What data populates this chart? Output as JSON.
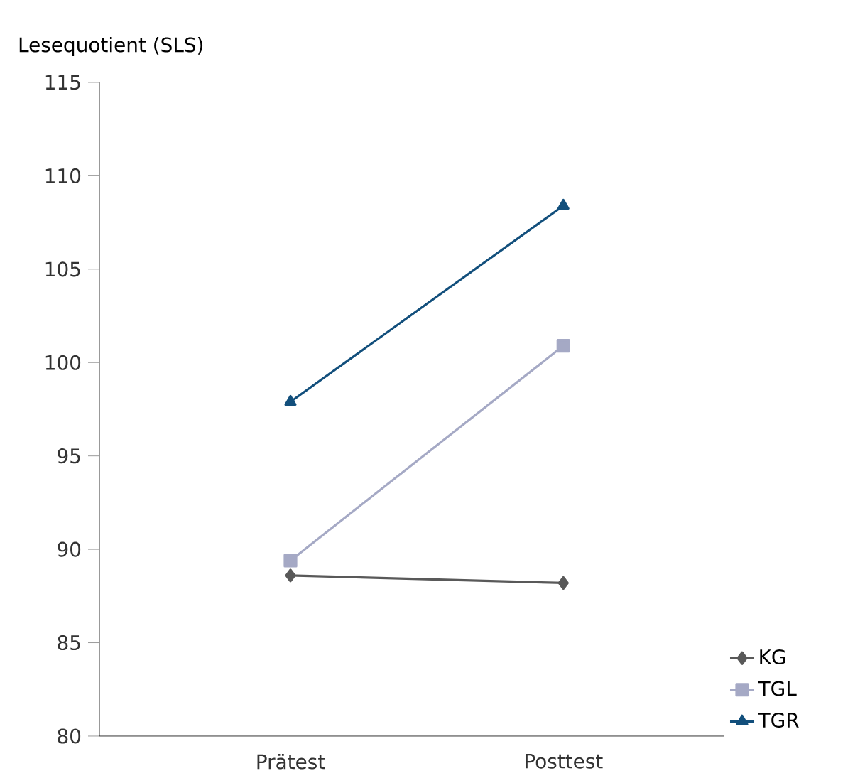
{
  "chart_data": {
    "type": "line",
    "ylabel": "Lesequotient (SLS)",
    "categories": [
      "Prätest",
      "Posttest"
    ],
    "series": [
      {
        "name": "KG",
        "color": "#595959",
        "marker": "diamond",
        "values": [
          88.6,
          88.2
        ]
      },
      {
        "name": "TGL",
        "color": "#a5a9c5",
        "marker": "square",
        "values": [
          89.4,
          100.9
        ]
      },
      {
        "name": "TGR",
        "color": "#124f7c",
        "marker": "triangle",
        "values": [
          97.9,
          108.4
        ]
      }
    ],
    "ylim": [
      80,
      115
    ],
    "yticks": [
      80,
      85,
      90,
      95,
      100,
      105,
      110,
      115
    ],
    "legend": "bottom right",
    "grid": false,
    "line_style": "solid"
  }
}
